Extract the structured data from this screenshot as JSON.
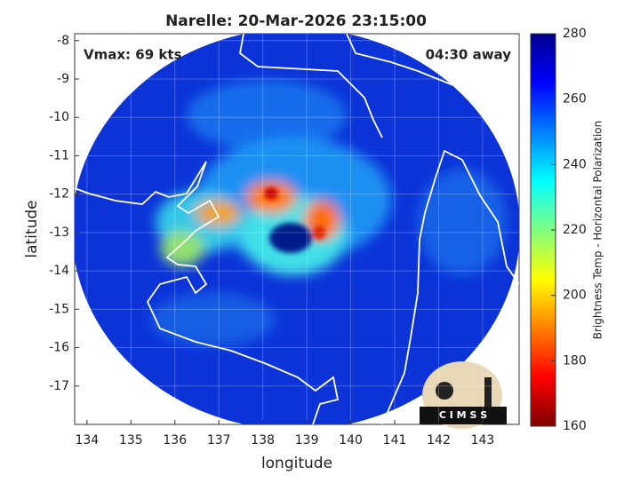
{
  "map": {
    "title": "Narelle: 20-Mar-2026 23:15:00",
    "xlabel": "longitude",
    "ylabel": "latitude",
    "xlim": [
      133.72,
      143.83
    ],
    "ylim": [
      -18.0,
      -7.82
    ],
    "xticks": [
      134,
      135,
      136,
      137,
      138,
      139,
      140,
      141,
      142,
      143
    ],
    "yticks": [
      -8,
      -9,
      -10,
      -11,
      -12,
      -13,
      -14,
      -15,
      -16,
      -17
    ],
    "grid": true,
    "annotations": [
      "Vmax: 69 kts",
      "04:30 away"
    ],
    "logo": "C I M S S",
    "colorbar": {
      "label": "Brightness Temp - Horizontal Polarization",
      "lim": [
        160,
        280
      ],
      "ticks": [
        160,
        180,
        200,
        220,
        240,
        260,
        280
      ],
      "colormap": [
        "#7f0000",
        "#ff0000",
        "#ff8000",
        "#ffff00",
        "#80ff80",
        "#00ffff",
        "#0080ff",
        "#0000ff",
        "#00008f"
      ]
    }
  }
}
